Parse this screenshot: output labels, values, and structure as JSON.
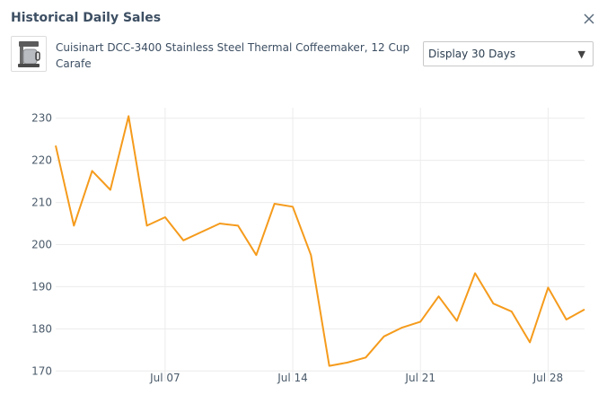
{
  "dialog": {
    "title": "Historical Daily Sales",
    "close_icon": "close-icon"
  },
  "product": {
    "name": "Cuisinart DCC-3400 Stainless Steel Thermal Coffeemaker, 12 Cup Carafe",
    "thumbnail_icon": "coffeemaker-thumbnail"
  },
  "range_select": {
    "selected": "Display 30 Days"
  },
  "chart_data": {
    "type": "line",
    "title": "",
    "xlabel": "",
    "ylabel": "",
    "x": [
      "Jul 01",
      "Jul 02",
      "Jul 03",
      "Jul 04",
      "Jul 05",
      "Jul 06",
      "Jul 07",
      "Jul 08",
      "Jul 09",
      "Jul 10",
      "Jul 11",
      "Jul 12",
      "Jul 13",
      "Jul 14",
      "Jul 15",
      "Jul 16",
      "Jul 17",
      "Jul 18",
      "Jul 19",
      "Jul 20",
      "Jul 21",
      "Jul 22",
      "Jul 23",
      "Jul 24",
      "Jul 25",
      "Jul 26",
      "Jul 27",
      "Jul 28",
      "Jul 29",
      "Jul 30"
    ],
    "series": [
      {
        "values": [
          223.5,
          204.5,
          217.5,
          213,
          230.5,
          204.5,
          206.5,
          201,
          203,
          205,
          204.5,
          197.5,
          209.7,
          209,
          197.5,
          171.2,
          172,
          173.2,
          178.2,
          180.3,
          181.7,
          187.7,
          181.9,
          193.2,
          186,
          184.1,
          176.8,
          189.8,
          182.2,
          184.6
        ],
        "color": "#f59b1c"
      }
    ],
    "x_tick_labels": [
      "Jul 07",
      "Jul 14",
      "Jul 21",
      "Jul 28"
    ],
    "y_ticks": [
      170,
      180,
      190,
      200,
      210,
      220,
      230
    ],
    "ylim": [
      167.5,
      232.5
    ],
    "grid": true,
    "legend": "none"
  }
}
